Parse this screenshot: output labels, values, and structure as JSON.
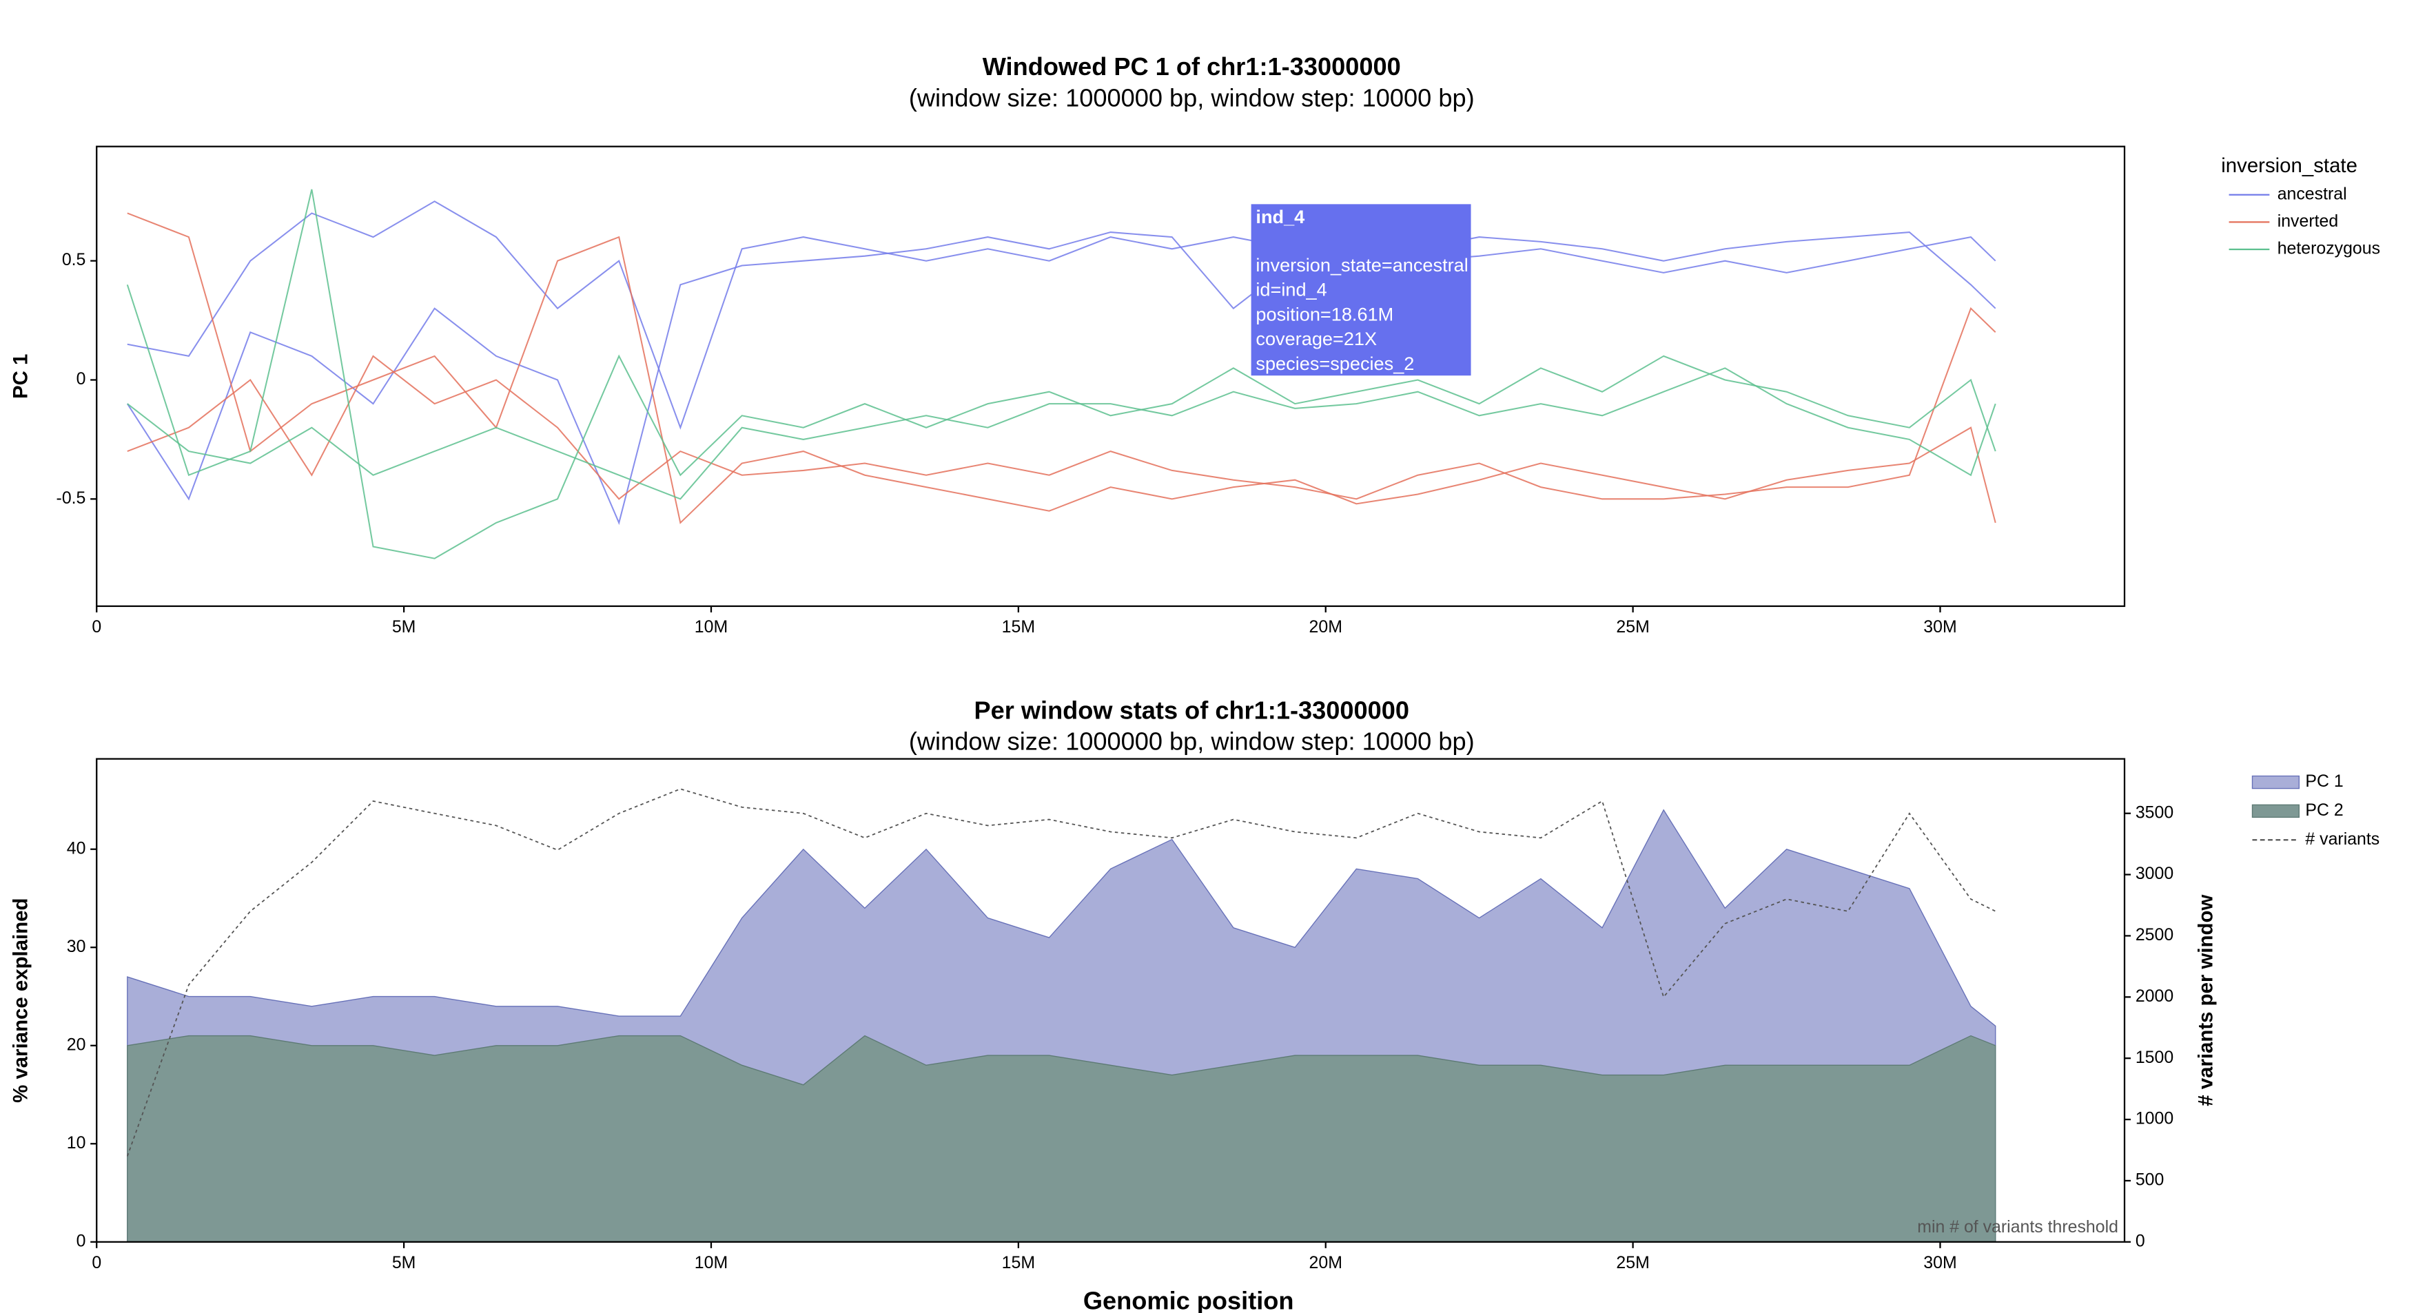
{
  "chart_data": [
    {
      "type": "line",
      "title": "Windowed PC 1 of chr1:1-33000000",
      "subtitle": "(window size: 1000000 bp, window step: 10000 bp)",
      "ylabel": "PC 1",
      "legend_title": "inversion_state",
      "x": [
        500000,
        1500000,
        2500000,
        3500000,
        4500000,
        5500000,
        6500000,
        7500000,
        8500000,
        9500000,
        10500000,
        11500000,
        12500000,
        13500000,
        14500000,
        15500000,
        16500000,
        17500000,
        18500000,
        19500000,
        20500000,
        21500000,
        22500000,
        23500000,
        24500000,
        25500000,
        26500000,
        27500000,
        28500000,
        29500000,
        30500000,
        30900000
      ],
      "xlim": [
        0,
        33000000
      ],
      "xticks": [
        0,
        {
          "value": 5000000,
          "label": "5M"
        },
        {
          "value": 10000000,
          "label": "10M"
        },
        {
          "value": 15000000,
          "label": "15M"
        },
        {
          "value": 20000000,
          "label": "20M"
        },
        {
          "value": 25000000,
          "label": "25M"
        },
        {
          "value": 30000000,
          "label": "30M"
        }
      ],
      "ylim": [
        -0.95,
        0.98
      ],
      "yticks": [
        -0.5,
        0,
        0.5
      ],
      "series": [
        {
          "name": "ancestral",
          "color": "#737bea",
          "lines": [
            [
              0.15,
              0.1,
              0.5,
              0.7,
              0.6,
              0.75,
              0.6,
              0.3,
              0.5,
              -0.2,
              0.55,
              0.6,
              0.55,
              0.5,
              0.55,
              0.5,
              0.6,
              0.55,
              0.6,
              0.55,
              0.6,
              0.55,
              0.6,
              0.58,
              0.55,
              0.5,
              0.55,
              0.58,
              0.6,
              0.62,
              0.4,
              0.3
            ],
            [
              -0.1,
              -0.5,
              0.2,
              0.1,
              -0.1,
              0.3,
              0.1,
              0.0,
              -0.6,
              0.4,
              0.48,
              0.5,
              0.52,
              0.55,
              0.6,
              0.55,
              0.62,
              0.6,
              0.3,
              0.5,
              0.55,
              0.5,
              0.52,
              0.55,
              0.5,
              0.45,
              0.5,
              0.45,
              0.5,
              0.55,
              0.6,
              0.5
            ]
          ]
        },
        {
          "name": "inverted",
          "color": "#e4705a",
          "lines": [
            [
              0.7,
              0.6,
              -0.3,
              -0.1,
              0.0,
              0.1,
              -0.2,
              0.5,
              0.6,
              -0.6,
              -0.35,
              -0.3,
              -0.4,
              -0.45,
              -0.5,
              -0.55,
              -0.45,
              -0.5,
              -0.45,
              -0.42,
              -0.52,
              -0.48,
              -0.42,
              -0.35,
              -0.4,
              -0.45,
              -0.5,
              -0.42,
              -0.38,
              -0.35,
              -0.2,
              -0.6
            ],
            [
              -0.3,
              -0.2,
              0.0,
              -0.4,
              0.1,
              -0.1,
              0.0,
              -0.2,
              -0.5,
              -0.3,
              -0.4,
              -0.38,
              -0.35,
              -0.4,
              -0.35,
              -0.4,
              -0.3,
              -0.38,
              -0.42,
              -0.45,
              -0.5,
              -0.4,
              -0.35,
              -0.45,
              -0.5,
              -0.5,
              -0.48,
              -0.45,
              -0.45,
              -0.4,
              0.3,
              0.2
            ]
          ]
        },
        {
          "name": "heterozygous",
          "color": "#5cbf8e",
          "lines": [
            [
              0.4,
              -0.4,
              -0.3,
              0.8,
              -0.7,
              -0.75,
              -0.6,
              -0.5,
              0.1,
              -0.4,
              -0.15,
              -0.2,
              -0.1,
              -0.2,
              -0.1,
              -0.05,
              -0.15,
              -0.1,
              0.05,
              -0.1,
              -0.05,
              0.0,
              -0.1,
              0.05,
              -0.05,
              0.1,
              0.0,
              -0.05,
              -0.15,
              -0.2,
              0.0,
              -0.3
            ],
            [
              -0.1,
              -0.3,
              -0.35,
              -0.2,
              -0.4,
              -0.3,
              -0.2,
              -0.3,
              -0.4,
              -0.5,
              -0.2,
              -0.25,
              -0.2,
              -0.15,
              -0.2,
              -0.1,
              -0.1,
              -0.15,
              -0.05,
              -0.12,
              -0.1,
              -0.05,
              -0.15,
              -0.1,
              -0.15,
              -0.05,
              0.05,
              -0.1,
              -0.2,
              -0.25,
              -0.4,
              -0.1
            ]
          ]
        }
      ],
      "tooltip": {
        "title": "ind_4",
        "lines": [
          "inversion_state=ancestral",
          "id=ind_4",
          "position=18.61M",
          "coverage=21X",
          "species=species_2"
        ]
      }
    },
    {
      "type": "area",
      "title": "Per window stats of chr1:1-33000000",
      "subtitle": "(window size: 1000000 bp, window step: 10000 bp)",
      "xlabel": "Genomic position",
      "ylabel": "% variance explained",
      "y2label": "# variants per window",
      "x": [
        500000,
        1500000,
        2500000,
        3500000,
        4500000,
        5500000,
        6500000,
        7500000,
        8500000,
        9500000,
        10500000,
        11500000,
        12500000,
        13500000,
        14500000,
        15500000,
        16500000,
        17500000,
        18500000,
        19500000,
        20500000,
        21500000,
        22500000,
        23500000,
        24500000,
        25500000,
        26500000,
        27500000,
        28500000,
        29500000,
        30500000,
        30900000
      ],
      "xlim": [
        0,
        33000000
      ],
      "xticks": [
        0,
        {
          "value": 5000000,
          "label": "5M"
        },
        {
          "value": 10000000,
          "label": "10M"
        },
        {
          "value": 15000000,
          "label": "15M"
        },
        {
          "value": 20000000,
          "label": "20M"
        },
        {
          "value": 25000000,
          "label": "25M"
        },
        {
          "value": 30000000,
          "label": "30M"
        }
      ],
      "ylim": [
        0,
        49.2
      ],
      "yticks": [
        0,
        10,
        20,
        30,
        40
      ],
      "y2lim": [
        0,
        3945
      ],
      "y2ticks": [
        0,
        500,
        1000,
        1500,
        2000,
        2500,
        3000,
        3500
      ],
      "series": [
        {
          "name": "PC 1",
          "color": "#a9aed8",
          "values": [
            27,
            25,
            25,
            24,
            25,
            25,
            24,
            24,
            23,
            23,
            33,
            40,
            34,
            40,
            33,
            31,
            38,
            41,
            32,
            30,
            38,
            37,
            33,
            37,
            32,
            44,
            34,
            40,
            38,
            36,
            24,
            22
          ]
        },
        {
          "name": "PC 2",
          "color": "#7e9894",
          "values": [
            20,
            21,
            21,
            20,
            20,
            19,
            20,
            20,
            21,
            21,
            18,
            16,
            21,
            18,
            19,
            19,
            18,
            17,
            18,
            19,
            19,
            19,
            18,
            18,
            17,
            17,
            18,
            18,
            18,
            18,
            21,
            20
          ]
        },
        {
          "name": "# variants",
          "color": "#555555",
          "axis": "y2",
          "style": "dashed",
          "values": [
            700,
            2100,
            2700,
            3100,
            3600,
            3500,
            3400,
            3200,
            3500,
            3700,
            3550,
            3500,
            3300,
            3500,
            3400,
            3450,
            3350,
            3300,
            3450,
            3350,
            3300,
            3500,
            3350,
            3300,
            3600,
            2000,
            2600,
            2800,
            2700,
            3500,
            2800,
            2700
          ]
        }
      ],
      "annotation": "min # of variants threshold"
    }
  ]
}
